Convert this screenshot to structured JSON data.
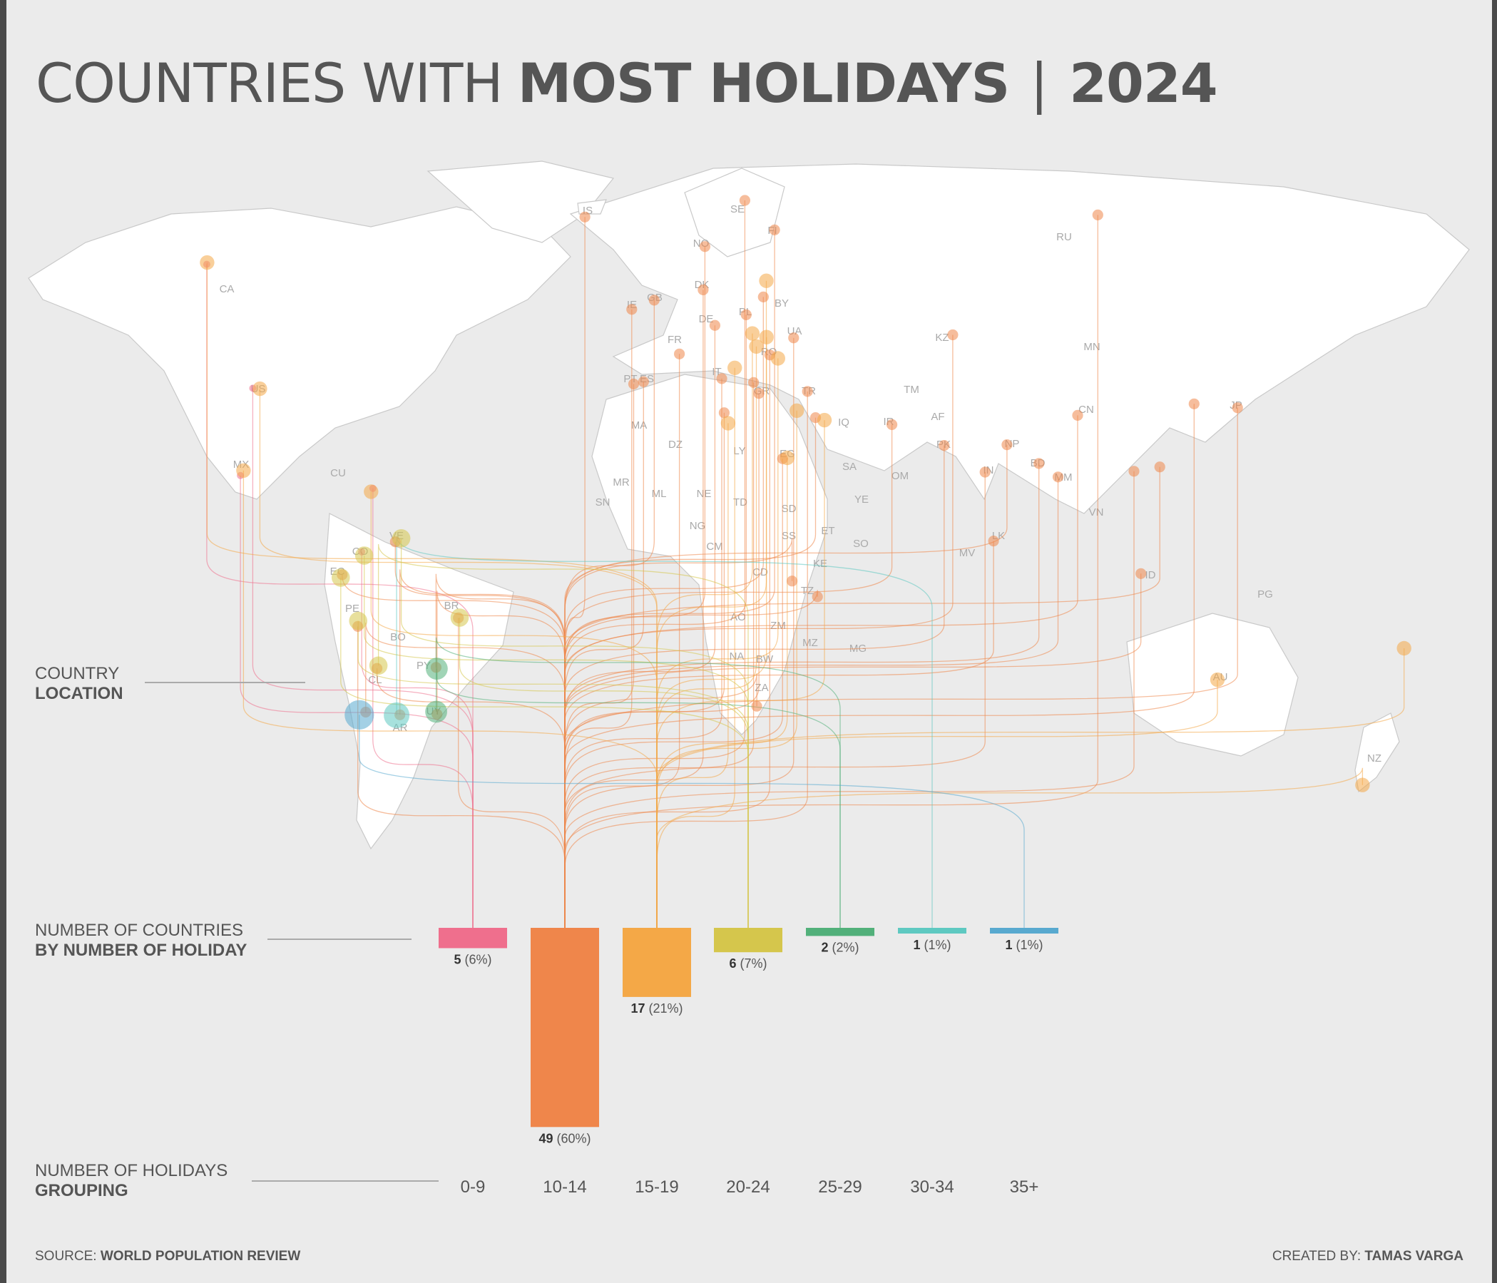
{
  "title": {
    "light": "COUNTRIES WITH",
    "bold": "MOST HOLIDAYS",
    "separator": "|",
    "year": "2024"
  },
  "labels": {
    "location": {
      "line1": "COUNTRY",
      "line2": "LOCATION"
    },
    "count": {
      "line1": "NUMBER OF COUNTRIES",
      "line2": "BY NUMBER OF HOLIDAY"
    },
    "grouping": {
      "line1": "NUMBER OF HOLIDAYS",
      "line2": "GROUPING"
    }
  },
  "footer": {
    "source_prefix": "SOURCE:",
    "source": "WORLD POPULATION REVIEW",
    "credit_prefix": "CREATED BY:",
    "credit": "TAMAS VARGA"
  },
  "colors": {
    "0-9": "#ef6f8d",
    "10-14": "#ef864b",
    "15-19": "#f4a847",
    "20-24": "#d5c64c",
    "25-29": "#52b07a",
    "30-34": "#5ec9c1",
    "35+": "#58a9cf",
    "land": "#ffffff",
    "border": "#c9c9c9"
  },
  "chart_data": {
    "type": "bar",
    "categories": [
      "0-9",
      "10-14",
      "15-19",
      "20-24",
      "25-29",
      "30-34",
      "35+"
    ],
    "values": [
      5,
      49,
      17,
      6,
      2,
      1,
      1
    ],
    "percent_labels": [
      "(6%)",
      "(60%)",
      "(21%)",
      "(7%)",
      "(2%)",
      "(1%)",
      "(1%)"
    ],
    "map_country_codes": [
      "CA",
      "US",
      "MX",
      "CU",
      "CO",
      "VE",
      "EC",
      "PE",
      "BR",
      "BO",
      "PY",
      "UY",
      "AR",
      "CL",
      "IS",
      "NO",
      "SE",
      "FI",
      "GB",
      "IE",
      "DE",
      "DK",
      "PL",
      "BY",
      "UA",
      "FR",
      "ES",
      "PT",
      "IT",
      "RO",
      "GR",
      "TR",
      "MA",
      "DZ",
      "LY",
      "EG",
      "MR",
      "ML",
      "NE",
      "TD",
      "SD",
      "SS",
      "ET",
      "SO",
      "KE",
      "TZ",
      "CD",
      "AO",
      "ZM",
      "MZ",
      "NA",
      "BW",
      "ZA",
      "MG",
      "SA",
      "YE",
      "OM",
      "IQ",
      "IR",
      "AF",
      "TM",
      "KZ",
      "PK",
      "IN",
      "NP",
      "BD",
      "MM",
      "LK",
      "MV",
      "CN",
      "MN",
      "RU",
      "VN",
      "JP",
      "ID",
      "PG",
      "AU",
      "NZ",
      "CM",
      "NG",
      "SN"
    ]
  }
}
